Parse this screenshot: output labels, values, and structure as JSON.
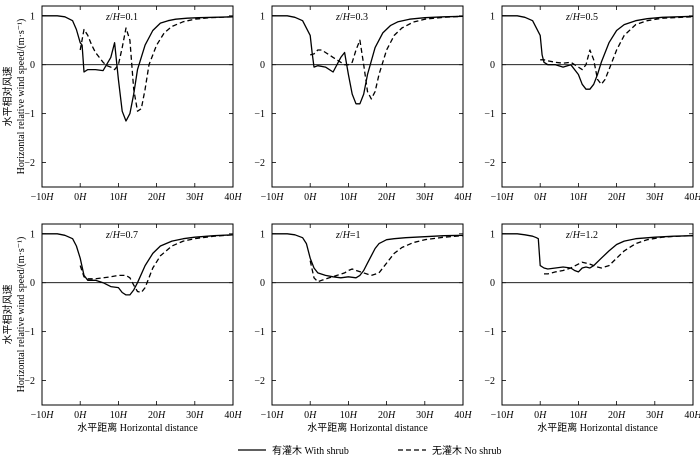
{
  "figure": {
    "legend": {
      "with_shrub": "有灌木 With shrub",
      "no_shrub": "无灌木 No shrub"
    }
  },
  "chart_data": [
    {
      "type": "line",
      "title": "z/H=0.1",
      "title_parts": {
        "var": "z",
        "sep": "/",
        "unit": "H",
        "value": "=0.1"
      },
      "ylabel_cn": "水平相对风速",
      "ylabel_en": "Horizontal relative wind speed/(m·s⁻¹)",
      "xlabel": "",
      "xlim": [
        -10,
        40
      ],
      "ylim": [
        -2.5,
        1.2
      ],
      "xticks": [
        -10,
        0,
        10,
        20,
        30,
        40
      ],
      "xtick_labels": [
        "−10H",
        "0H",
        "10H",
        "20H",
        "30H",
        "40H"
      ],
      "yticks": [
        1,
        0,
        -1,
        -2
      ],
      "ytick_labels": [
        "1",
        "0",
        "−1",
        "−2"
      ],
      "series": [
        {
          "name": "有灌木 With shrub",
          "style": "solid",
          "x": [
            -10,
            -6,
            -4,
            -2,
            -1,
            0,
            0.5,
            1,
            2,
            4,
            6,
            8,
            9,
            10,
            11,
            12,
            13,
            14,
            15,
            17,
            19,
            21,
            23,
            25,
            28,
            31,
            35,
            40
          ],
          "y": [
            1.0,
            1.0,
            0.98,
            0.9,
            0.72,
            0.45,
            0.4,
            -0.15,
            -0.1,
            -0.1,
            -0.12,
            0.15,
            0.45,
            -0.3,
            -0.95,
            -1.15,
            -1.0,
            -0.6,
            -0.1,
            0.4,
            0.7,
            0.85,
            0.9,
            0.93,
            0.95,
            0.96,
            0.97,
            0.98
          ]
        },
        {
          "name": "无灌木 No shrub",
          "style": "dashed",
          "x": [
            0,
            1,
            2,
            3,
            4,
            5,
            6,
            7,
            8,
            9,
            10,
            11,
            12,
            13,
            14,
            15,
            16,
            17,
            18,
            20,
            22,
            24,
            27,
            30,
            34,
            40
          ],
          "y": [
            0.3,
            0.72,
            0.6,
            0.4,
            0.25,
            0.15,
            0.05,
            -0.02,
            -0.05,
            -0.1,
            0.0,
            0.35,
            0.75,
            0.5,
            -0.5,
            -0.95,
            -0.9,
            -0.5,
            0.0,
            0.4,
            0.65,
            0.78,
            0.88,
            0.93,
            0.96,
            0.98
          ]
        }
      ]
    },
    {
      "type": "line",
      "title": "z/H=0.3",
      "title_parts": {
        "var": "z",
        "sep": "/",
        "unit": "H",
        "value": "=0.3"
      },
      "ylabel_cn": "",
      "ylabel_en": "",
      "xlabel": "",
      "xlim": [
        -10,
        40
      ],
      "ylim": [
        -2.5,
        1.2
      ],
      "xticks": [
        -10,
        0,
        10,
        20,
        30,
        40
      ],
      "xtick_labels": [
        "−10H",
        "0H",
        "10H",
        "20H",
        "30H",
        "40H"
      ],
      "yticks": [
        1,
        0,
        -1,
        -2
      ],
      "ytick_labels": [
        "1",
        "0",
        "−1",
        "−2"
      ],
      "series": [
        {
          "name": "有灌木 With shrub",
          "style": "solid",
          "x": [
            -10,
            -6,
            -4,
            -2,
            0,
            0.5,
            1,
            2,
            4,
            6,
            8,
            9,
            10,
            11,
            12,
            13,
            14,
            15,
            17,
            19,
            21,
            23,
            26,
            30,
            35,
            40
          ],
          "y": [
            1.0,
            1.0,
            0.97,
            0.9,
            0.6,
            0.25,
            -0.05,
            -0.02,
            -0.05,
            -0.15,
            0.15,
            0.25,
            -0.2,
            -0.6,
            -0.8,
            -0.8,
            -0.6,
            -0.2,
            0.35,
            0.65,
            0.8,
            0.88,
            0.93,
            0.96,
            0.98,
            0.99
          ]
        },
        {
          "name": "无灌木 No shrub",
          "style": "dashed",
          "x": [
            0,
            1,
            2,
            3,
            4,
            6,
            8,
            9,
            10,
            11,
            12,
            13,
            14,
            15,
            16,
            17,
            18,
            20,
            22,
            24,
            27,
            30,
            35,
            40
          ],
          "y": [
            0.2,
            0.22,
            0.3,
            0.3,
            0.25,
            0.15,
            0.05,
            0.0,
            0.0,
            0.05,
            0.3,
            0.5,
            0.0,
            -0.55,
            -0.7,
            -0.55,
            -0.2,
            0.3,
            0.6,
            0.75,
            0.87,
            0.93,
            0.97,
            0.99
          ]
        }
      ]
    },
    {
      "type": "line",
      "title": "z/H=0.5",
      "title_parts": {
        "var": "z",
        "sep": "/",
        "unit": "H",
        "value": "=0.5"
      },
      "ylabel_cn": "",
      "ylabel_en": "",
      "xlabel": "",
      "xlim": [
        -10,
        40
      ],
      "ylim": [
        -2.5,
        1.2
      ],
      "xticks": [
        -10,
        0,
        10,
        20,
        30,
        40
      ],
      "xtick_labels": [
        "−10H",
        "0H",
        "10H",
        "20H",
        "30H",
        "40H"
      ],
      "yticks": [
        1,
        0,
        -1,
        -2
      ],
      "ytick_labels": [
        "1",
        "0",
        "−1",
        "−2"
      ],
      "series": [
        {
          "name": "有灌木 With shrub",
          "style": "solid",
          "x": [
            -10,
            -6,
            -4,
            -2,
            0,
            0.5,
            1,
            2,
            4,
            6,
            8,
            10,
            11,
            12,
            13,
            14,
            15,
            16,
            18,
            20,
            22,
            25,
            28,
            32,
            36,
            40
          ],
          "y": [
            1.0,
            1.0,
            0.97,
            0.9,
            0.6,
            0.2,
            0.05,
            0.0,
            0.0,
            -0.05,
            0.0,
            -0.2,
            -0.4,
            -0.5,
            -0.5,
            -0.4,
            -0.2,
            0.05,
            0.45,
            0.7,
            0.82,
            0.9,
            0.94,
            0.97,
            0.98,
            0.99
          ]
        },
        {
          "name": "无灌木 No shrub",
          "style": "dashed",
          "x": [
            0,
            1,
            2,
            4,
            6,
            8,
            9,
            10,
            11,
            12,
            13,
            14,
            15,
            16,
            17,
            18,
            20,
            22,
            25,
            28,
            32,
            40
          ],
          "y": [
            0.1,
            0.1,
            0.08,
            0.05,
            0.03,
            0.05,
            0.0,
            -0.05,
            -0.1,
            0.0,
            0.3,
            0.1,
            -0.3,
            -0.4,
            -0.3,
            -0.1,
            0.3,
            0.6,
            0.82,
            0.9,
            0.95,
            0.98
          ]
        }
      ]
    },
    {
      "type": "line",
      "title": "z/H=0.7",
      "title_parts": {
        "var": "z",
        "sep": "/",
        "unit": "H",
        "value": "=0.7"
      },
      "ylabel_cn": "水平相对风速",
      "ylabel_en": "Horizontal relative wind speed/(m·s⁻¹)",
      "xlabel": "水平距离 Horizontal distance",
      "xlim": [
        -10,
        40
      ],
      "ylim": [
        -2.5,
        1.2
      ],
      "xticks": [
        -10,
        0,
        10,
        20,
        30,
        40
      ],
      "xtick_labels": [
        "−10H",
        "0H",
        "10H",
        "20H",
        "30H",
        "40H"
      ],
      "yticks": [
        1,
        0,
        -1,
        -2
      ],
      "ytick_labels": [
        "1",
        "0",
        "−1",
        "−2"
      ],
      "series": [
        {
          "name": "有灌木 With shrub",
          "style": "solid",
          "x": [
            -10,
            -6,
            -4,
            -2,
            -1,
            0,
            1,
            2,
            4,
            6,
            8,
            10,
            11,
            12,
            13,
            14,
            15,
            17,
            19,
            21,
            24,
            27,
            30,
            35,
            40
          ],
          "y": [
            1.0,
            1.0,
            0.97,
            0.9,
            0.75,
            0.5,
            0.15,
            0.05,
            0.05,
            0.0,
            -0.08,
            -0.1,
            -0.2,
            -0.25,
            -0.25,
            -0.15,
            0.0,
            0.35,
            0.6,
            0.75,
            0.85,
            0.9,
            0.93,
            0.96,
            0.98
          ]
        },
        {
          "name": "无灌木 No shrub",
          "style": "dashed",
          "x": [
            0,
            1,
            2,
            4,
            6,
            8,
            10,
            12,
            13,
            14,
            15,
            16,
            17,
            19,
            21,
            24,
            27,
            30,
            35,
            40
          ],
          "y": [
            0.35,
            0.12,
            0.08,
            0.08,
            0.1,
            0.12,
            0.15,
            0.15,
            0.1,
            -0.05,
            -0.18,
            -0.2,
            -0.1,
            0.3,
            0.55,
            0.75,
            0.85,
            0.9,
            0.95,
            0.98
          ]
        }
      ]
    },
    {
      "type": "line",
      "title": "z/H=1",
      "title_parts": {
        "var": "z",
        "sep": "/",
        "unit": "H",
        "value": "=1"
      },
      "ylabel_cn": "",
      "ylabel_en": "",
      "xlabel": "水平距离 Horizontal distance",
      "xlim": [
        -10,
        40
      ],
      "ylim": [
        -2.5,
        1.2
      ],
      "xticks": [
        -10,
        0,
        10,
        20,
        30,
        40
      ],
      "xtick_labels": [
        "−10H",
        "0H",
        "10H",
        "20H",
        "30H",
        "40H"
      ],
      "yticks": [
        1,
        0,
        -1,
        -2
      ],
      "ytick_labels": [
        "1",
        "0",
        "−1",
        "−2"
      ],
      "series": [
        {
          "name": "有灌木 With shrub",
          "style": "solid",
          "x": [
            -10,
            -6,
            -4,
            -2,
            -1,
            0,
            1,
            2,
            4,
            6,
            8,
            10,
            12,
            13,
            14,
            15,
            16,
            17,
            18,
            20,
            22,
            25,
            30,
            35,
            40
          ],
          "y": [
            1.0,
            1.0,
            0.98,
            0.92,
            0.8,
            0.5,
            0.3,
            0.2,
            0.15,
            0.12,
            0.1,
            0.12,
            0.1,
            0.15,
            0.25,
            0.4,
            0.55,
            0.7,
            0.8,
            0.88,
            0.9,
            0.92,
            0.94,
            0.96,
            0.97
          ]
        },
        {
          "name": "无灌木 No shrub",
          "style": "dashed",
          "x": [
            0,
            1,
            2,
            3,
            5,
            7,
            9,
            10,
            11,
            12,
            14,
            16,
            18,
            20,
            22,
            24,
            27,
            30,
            35,
            40
          ],
          "y": [
            0.45,
            0.1,
            0.02,
            0.05,
            0.1,
            0.15,
            0.2,
            0.25,
            0.28,
            0.25,
            0.2,
            0.15,
            0.2,
            0.4,
            0.6,
            0.72,
            0.82,
            0.88,
            0.93,
            0.96
          ]
        }
      ]
    },
    {
      "type": "line",
      "title": "z/H=1.2",
      "title_parts": {
        "var": "z",
        "sep": "/",
        "unit": "H",
        "value": "=1.2"
      },
      "ylabel_cn": "",
      "ylabel_en": "",
      "xlabel": "水平距离 Horizontal distance",
      "xlim": [
        -10,
        40
      ],
      "ylim": [
        -2.5,
        1.2
      ],
      "xticks": [
        -10,
        0,
        10,
        20,
        30,
        40
      ],
      "xtick_labels": [
        "−10H",
        "0H",
        "10H",
        "20H",
        "30H",
        "40H"
      ],
      "yticks": [
        1,
        0,
        -1,
        -2
      ],
      "ytick_labels": [
        "1",
        "0",
        "−1",
        "−2"
      ],
      "series": [
        {
          "name": "有灌木 With shrub",
          "style": "solid",
          "x": [
            -10,
            -6,
            -4,
            -2,
            -1,
            -0.5,
            0,
            1,
            2,
            4,
            6,
            8,
            9,
            10,
            11,
            12,
            13,
            14,
            16,
            18,
            20,
            22,
            25,
            30,
            35,
            40
          ],
          "y": [
            1.0,
            1.0,
            0.98,
            0.95,
            0.92,
            0.9,
            0.35,
            0.3,
            0.28,
            0.3,
            0.32,
            0.3,
            0.25,
            0.22,
            0.3,
            0.32,
            0.3,
            0.35,
            0.5,
            0.65,
            0.78,
            0.85,
            0.9,
            0.93,
            0.95,
            0.96
          ]
        },
        {
          "name": "无灌木 No shrub",
          "style": "dashed",
          "x": [
            1,
            2,
            3,
            4,
            6,
            8,
            10,
            11,
            12,
            13,
            14,
            15,
            16,
            18,
            20,
            22,
            25,
            28,
            32,
            36,
            40
          ],
          "y": [
            0.18,
            0.18,
            0.2,
            0.22,
            0.25,
            0.3,
            0.38,
            0.42,
            0.4,
            0.38,
            0.35,
            0.32,
            0.3,
            0.35,
            0.5,
            0.65,
            0.8,
            0.88,
            0.93,
            0.95,
            0.96
          ]
        }
      ]
    }
  ]
}
